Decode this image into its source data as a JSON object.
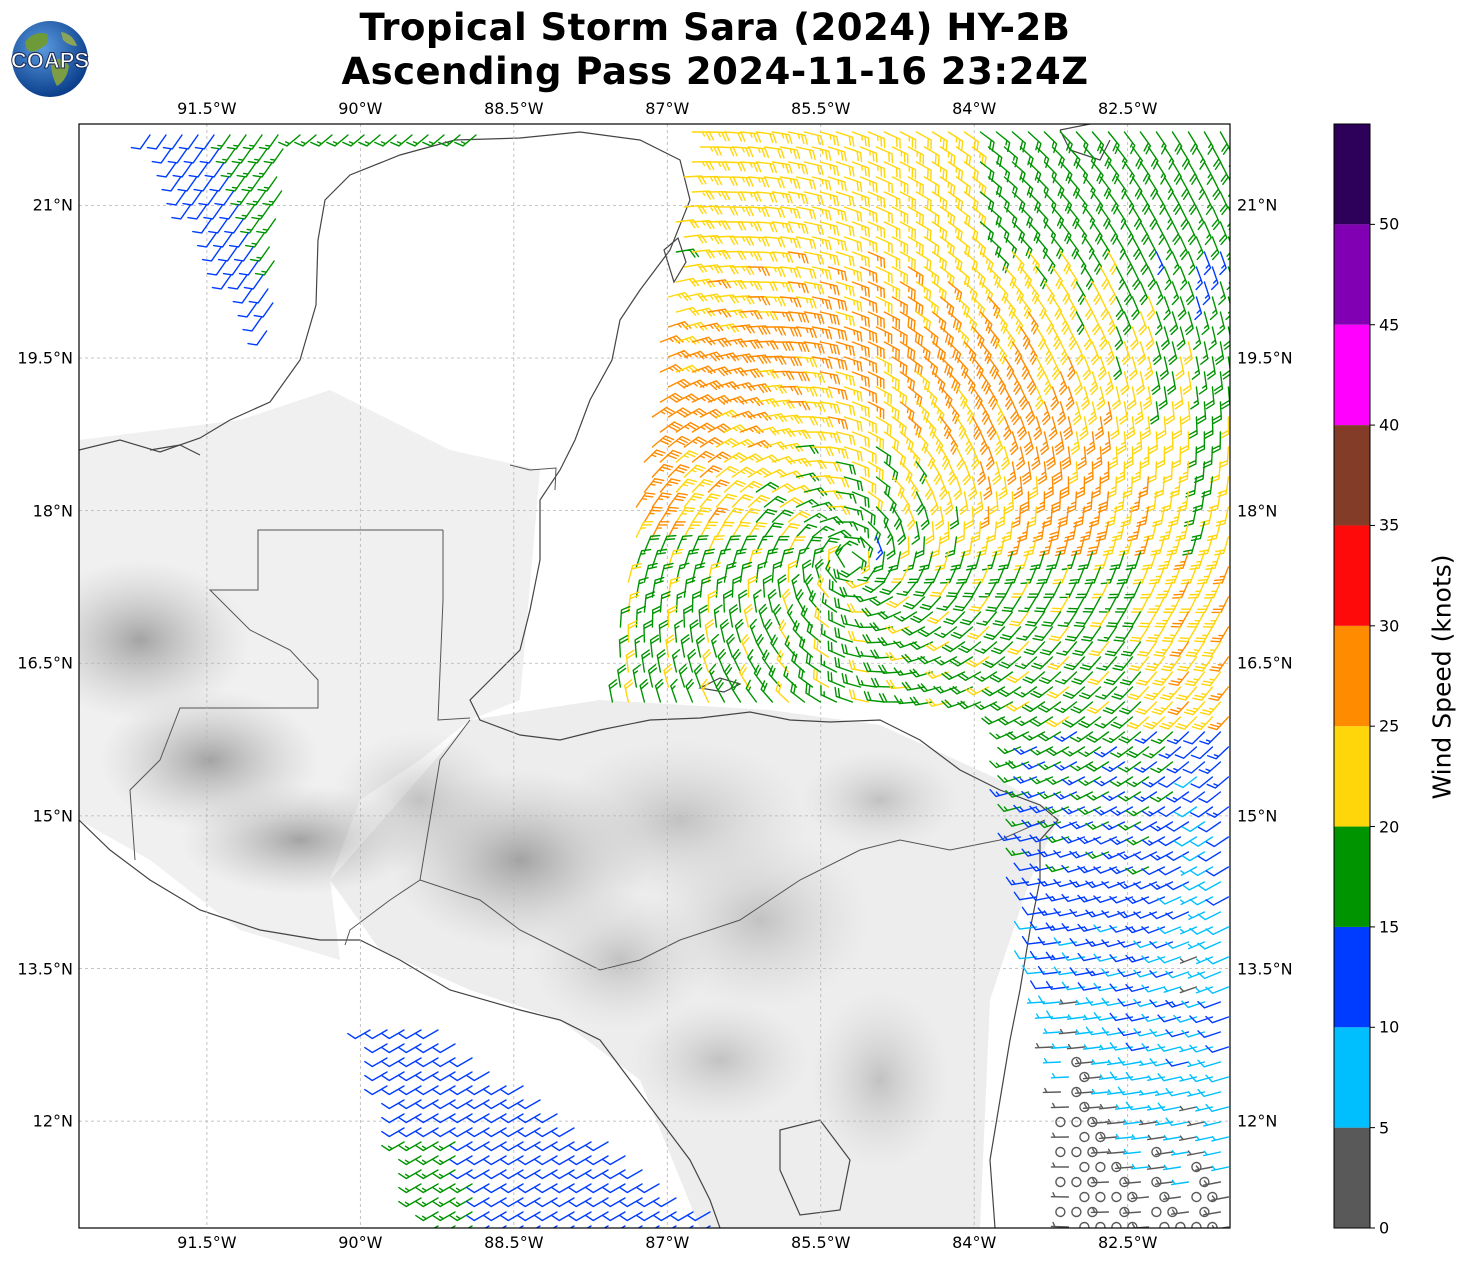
{
  "title": {
    "line1": "Tropical Storm Sara (2024) HY-2B",
    "line2": "Ascending Pass 2024-11-16 23:24Z"
  },
  "logo": {
    "text": "COAPS",
    "icon": "globe-logo-icon"
  },
  "map": {
    "lon_range": [
      -92.75,
      -81.5
    ],
    "lat_range": [
      10.95,
      21.8
    ],
    "lon_ticks": [
      {
        "value": -91.5,
        "label": "91.5°W"
      },
      {
        "value": -90.0,
        "label": "90°W"
      },
      {
        "value": -88.5,
        "label": "88.5°W"
      },
      {
        "value": -87.0,
        "label": "87°W"
      },
      {
        "value": -85.5,
        "label": "85.5°W"
      },
      {
        "value": -84.0,
        "label": "84°W"
      },
      {
        "value": -82.5,
        "label": "82.5°W"
      }
    ],
    "lat_ticks": [
      {
        "value": 21.0,
        "label": "21°N"
      },
      {
        "value": 19.5,
        "label": "19.5°N"
      },
      {
        "value": 18.0,
        "label": "18°N"
      },
      {
        "value": 16.5,
        "label": "16.5°N"
      },
      {
        "value": 15.0,
        "label": "15°N"
      },
      {
        "value": 13.5,
        "label": "13.5°N"
      },
      {
        "value": 12.0,
        "label": "12°N"
      }
    ],
    "grid": true
  },
  "colorbar": {
    "title": "Wind Speed (knots)",
    "ticks": [
      "0",
      "5",
      "10",
      "15",
      "20",
      "25",
      "30",
      "35",
      "40",
      "45",
      "50"
    ],
    "bins": [
      {
        "min": 0,
        "max": 5,
        "color": "#595959"
      },
      {
        "min": 5,
        "max": 10,
        "color": "#00bfff"
      },
      {
        "min": 10,
        "max": 15,
        "color": "#003cff"
      },
      {
        "min": 15,
        "max": 20,
        "color": "#009400"
      },
      {
        "min": 20,
        "max": 25,
        "color": "#ffd60a"
      },
      {
        "min": 25,
        "max": 30,
        "color": "#ff8c00"
      },
      {
        "min": 30,
        "max": 35,
        "color": "#ff0a0a"
      },
      {
        "min": 35,
        "max": 40,
        "color": "#823c28"
      },
      {
        "min": 40,
        "max": 45,
        "color": "#ff00ff"
      },
      {
        "min": 45,
        "max": 50,
        "color": "#8200b4"
      },
      {
        "min": 50,
        "max": 55,
        "color": "#2d005a"
      }
    ]
  }
}
